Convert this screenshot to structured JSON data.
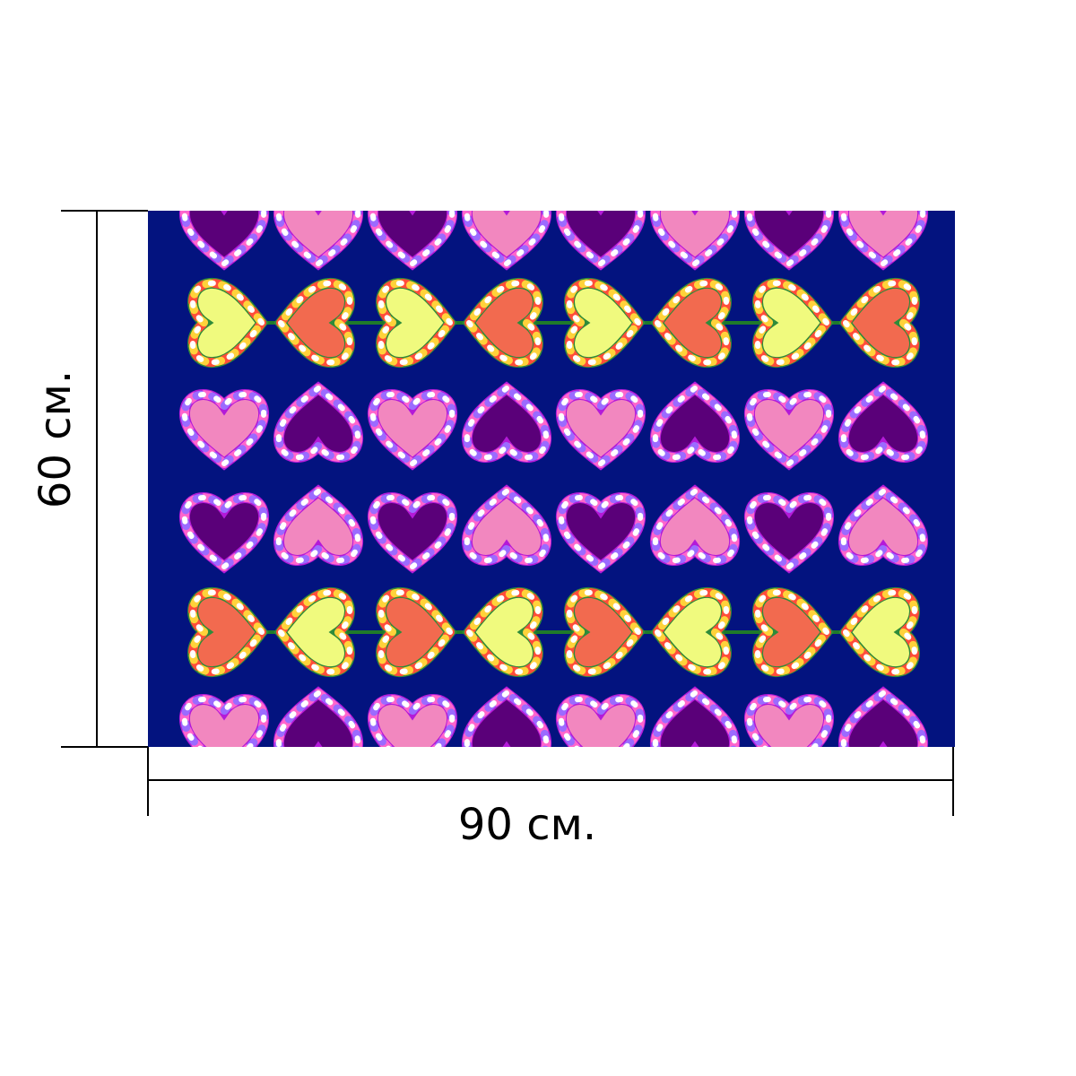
{
  "labels": {
    "height": "60 см.",
    "width": "90 см."
  }
}
